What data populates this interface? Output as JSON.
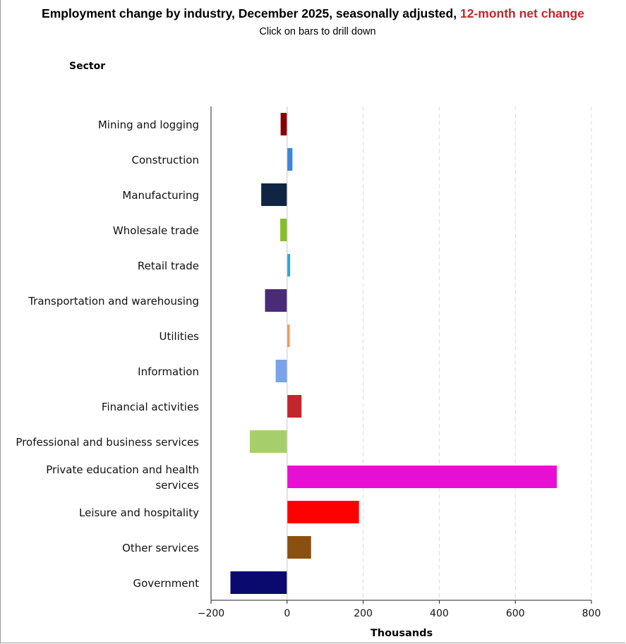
{
  "title": "Employment change by industry, December 2025, seasonally adjusted,",
  "title_accent": "12-month net change",
  "subtitle": "Click on bars to drill down",
  "chart_data": {
    "type": "bar",
    "orientation": "horizontal",
    "ylabel": "Sector",
    "xlabel": "Thousands",
    "xlim": [
      -200,
      800
    ],
    "xticks": [
      -200,
      0,
      200,
      400,
      600,
      800
    ],
    "xtick_labels": [
      "−200",
      "0",
      "200",
      "400",
      "600",
      "800"
    ],
    "grid": "vertical dashed",
    "categories": [
      [
        "Mining and logging"
      ],
      [
        "Construction"
      ],
      [
        "Manufacturing"
      ],
      [
        "Wholesale trade"
      ],
      [
        "Retail trade"
      ],
      [
        "Transportation and warehousing"
      ],
      [
        "Utilities"
      ],
      [
        "Information"
      ],
      [
        "Financial activities"
      ],
      [
        "Professional and business services"
      ],
      [
        "Private education and health",
        "services"
      ],
      [
        "Leisure and hospitality"
      ],
      [
        "Other services"
      ],
      [
        "Government"
      ]
    ],
    "values": [
      -17,
      14,
      -68,
      -18,
      8,
      -58,
      7,
      -30,
      38,
      -98,
      709,
      189,
      63,
      -149
    ],
    "colors": [
      "#8b0000",
      "#3a86d8",
      "#0f2541",
      "#86bd29",
      "#27a9dd",
      "#4b2a78",
      "#f59b5b",
      "#7aa3e8",
      "#c1272d",
      "#a6cf6b",
      "#e60fd3",
      "#ff0000",
      "#8b4f0f",
      "#0a0a6e"
    ]
  }
}
